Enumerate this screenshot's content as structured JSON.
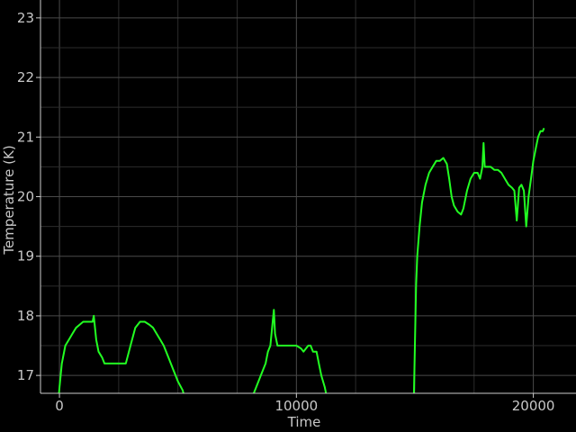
{
  "chart_data": {
    "type": "line",
    "title": "",
    "xlabel": "Time",
    "ylabel": "Temperature (K)",
    "xlim": [
      -800,
      21800
    ],
    "ylim": [
      16.7,
      23.3
    ],
    "grid": true,
    "x_ticks": [
      0,
      10000,
      20000
    ],
    "y_ticks": [
      17,
      18,
      19,
      20,
      21,
      22,
      23
    ],
    "colors": {
      "background": "#000000",
      "line": "#22ff22",
      "grid": "#3a3a3a",
      "axis": "#cccccc",
      "text": "#c8c8c8"
    },
    "series": [
      {
        "color": "#22ff22",
        "segments": [
          [
            [
              -50,
              16.55
            ],
            [
              0,
              16.8
            ],
            [
              100,
              17.2
            ],
            [
              250,
              17.5
            ],
            [
              400,
              17.6
            ],
            [
              550,
              17.7
            ],
            [
              700,
              17.8
            ],
            [
              850,
              17.85
            ],
            [
              1000,
              17.9
            ],
            [
              1200,
              17.9
            ],
            [
              1400,
              17.9
            ],
            [
              1450,
              18.0
            ],
            [
              1550,
              17.6
            ],
            [
              1650,
              17.4
            ],
            [
              1800,
              17.3
            ],
            [
              1900,
              17.2
            ],
            [
              2200,
              17.2
            ],
            [
              2500,
              17.2
            ],
            [
              2800,
              17.2
            ],
            [
              3000,
              17.5
            ],
            [
              3200,
              17.8
            ],
            [
              3400,
              17.9
            ],
            [
              3600,
              17.9
            ],
            [
              3800,
              17.85
            ],
            [
              3950,
              17.8
            ],
            [
              4100,
              17.7
            ],
            [
              4250,
              17.6
            ],
            [
              4400,
              17.5
            ],
            [
              4600,
              17.3
            ],
            [
              4800,
              17.1
            ],
            [
              5000,
              16.9
            ],
            [
              5200,
              16.75
            ],
            [
              5300,
              16.6
            ]
          ],
          [
            [
              8100,
              16.6
            ],
            [
              8300,
              16.8
            ],
            [
              8500,
              17.0
            ],
            [
              8700,
              17.2
            ],
            [
              8800,
              17.4
            ],
            [
              8900,
              17.5
            ],
            [
              9000,
              17.9
            ],
            [
              9050,
              18.1
            ],
            [
              9100,
              17.7
            ],
            [
              9200,
              17.5
            ],
            [
              9600,
              17.5
            ],
            [
              10000,
              17.5
            ],
            [
              10200,
              17.45
            ],
            [
              10300,
              17.4
            ],
            [
              10500,
              17.5
            ],
            [
              10600,
              17.5
            ],
            [
              10700,
              17.4
            ],
            [
              10850,
              17.4
            ],
            [
              10950,
              17.2
            ],
            [
              11050,
              17.0
            ],
            [
              11200,
              16.8
            ],
            [
              11300,
              16.6
            ]
          ],
          [
            [
              14950,
              16.5
            ],
            [
              15000,
              17.5
            ],
            [
              15050,
              18.5
            ],
            [
              15100,
              19.0
            ],
            [
              15200,
              19.5
            ],
            [
              15300,
              19.9
            ],
            [
              15450,
              20.2
            ],
            [
              15600,
              20.4
            ],
            [
              15750,
              20.5
            ],
            [
              15900,
              20.6
            ],
            [
              16050,
              20.6
            ],
            [
              16200,
              20.65
            ],
            [
              16350,
              20.55
            ],
            [
              16450,
              20.3
            ],
            [
              16550,
              20.0
            ],
            [
              16650,
              19.85
            ],
            [
              16800,
              19.75
            ],
            [
              16950,
              19.7
            ],
            [
              17050,
              19.8
            ],
            [
              17200,
              20.1
            ],
            [
              17350,
              20.3
            ],
            [
              17500,
              20.4
            ],
            [
              17650,
              20.4
            ],
            [
              17750,
              20.3
            ],
            [
              17850,
              20.5
            ],
            [
              17900,
              20.9
            ],
            [
              17950,
              20.5
            ],
            [
              18050,
              20.5
            ],
            [
              18200,
              20.5
            ],
            [
              18350,
              20.45
            ],
            [
              18500,
              20.45
            ],
            [
              18650,
              20.4
            ],
            [
              18800,
              20.3
            ],
            [
              18950,
              20.2
            ],
            [
              19100,
              20.15
            ],
            [
              19200,
              20.1
            ],
            [
              19300,
              19.6
            ],
            [
              19400,
              20.15
            ],
            [
              19500,
              20.2
            ],
            [
              19600,
              20.1
            ],
            [
              19700,
              19.5
            ],
            [
              19800,
              20.0
            ],
            [
              19900,
              20.3
            ],
            [
              20000,
              20.6
            ],
            [
              20100,
              20.8
            ],
            [
              20200,
              21.0
            ],
            [
              20300,
              21.1
            ],
            [
              20400,
              21.1
            ],
            [
              20450,
              21.15
            ]
          ]
        ]
      }
    ]
  }
}
